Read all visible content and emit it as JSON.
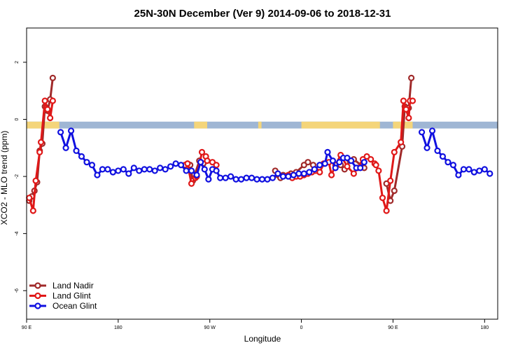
{
  "chart_data": {
    "type": "line",
    "title": "25N-30N December (Ver 9)   2014-09-06 to 2018-12-31",
    "xlabel": "Longitude",
    "ylabel": "XCO2 - MLO trend (ppm)",
    "xlim": [
      -90,
      270
    ],
    "ylim": [
      -7.0,
      3.2
    ],
    "x_ticks": [
      {
        "value": -90,
        "label": "90 E"
      },
      {
        "value": -20,
        "label": "180"
      },
      {
        "value": 50,
        "label": "90 W"
      },
      {
        "value": 120,
        "label": "0"
      },
      {
        "value": 190,
        "label": "90 E"
      },
      {
        "value": 260,
        "label": "180"
      }
    ],
    "y_ticks": [
      {
        "value": 2,
        "label": "2"
      },
      {
        "value": 0,
        "label": "0"
      },
      {
        "value": -2,
        "label": "-2"
      },
      {
        "value": -4,
        "label": "-4"
      },
      {
        "value": -6,
        "label": "-6"
      }
    ],
    "land_band": {
      "y_range": [
        -0.32,
        -0.08
      ],
      "ocean_color": "#9fb6d4",
      "land_color": "#f4d57a",
      "land_segments": [
        [
          -90,
          -65
        ],
        [
          38,
          48
        ],
        [
          87,
          89.5
        ],
        [
          120,
          180
        ],
        [
          190,
          205
        ]
      ]
    },
    "legend_position": "bottom-left",
    "series": [
      {
        "name": "Land Nadir",
        "color": "#a02a2a",
        "x": [
          -88,
          -86,
          -84,
          -82,
          -80,
          -78,
          -76,
          -74,
          -72,
          -70,
          33,
          35,
          37,
          42,
          45,
          100,
          102,
          104,
          106,
          112,
          116,
          122,
          125,
          129,
          150,
          153,
          157,
          160,
          168,
          185,
          188,
          191,
          197,
          199,
          202,
          204
        ],
        "y": [
          -2.85,
          -2.7,
          -2.5,
          -2.2,
          -1.1,
          -0.85,
          0.45,
          0.3,
          0.7,
          1.45,
          -1.55,
          -1.6,
          -2.15,
          -1.45,
          -1.55,
          -1.8,
          -1.95,
          -2.05,
          -1.95,
          -1.9,
          -1.85,
          -1.6,
          -1.5,
          -1.6,
          -1.6,
          -1.75,
          -1.45,
          -1.4,
          -1.7,
          -2.25,
          -2.85,
          -2.5,
          -0.95,
          0.45,
          0.4,
          1.45
        ]
      },
      {
        "name": "Land Glint",
        "color": "#e01818",
        "x": [
          -88,
          -85,
          -83,
          -80,
          -79,
          -76,
          -74,
          -72,
          -70,
          31,
          33,
          36,
          39,
          40,
          44,
          47,
          48,
          52,
          55,
          110,
          113,
          116,
          119,
          122,
          125,
          128,
          131,
          134,
          137,
          141,
          143,
          146,
          150,
          155,
          160,
          163,
          167,
          170,
          173,
          176,
          177,
          179,
          182,
          185,
          188,
          191,
          196,
          198,
          200,
          202,
          203,
          205
        ],
        "y": [
          -2.75,
          -3.2,
          -2.15,
          -1.15,
          -0.8,
          0.65,
          0.35,
          0.05,
          0.65,
          -1.6,
          -1.55,
          -2.25,
          -2.05,
          -2.0,
          -1.15,
          -1.3,
          -1.45,
          -1.5,
          -1.6,
          -1.95,
          -2.05,
          -2.0,
          -2.0,
          -1.95,
          -1.9,
          -1.85,
          -1.8,
          -1.85,
          -1.55,
          -1.5,
          -1.95,
          -1.6,
          -1.25,
          -1.65,
          -1.9,
          -1.7,
          -1.4,
          -1.3,
          -1.4,
          -1.55,
          -1.6,
          -1.8,
          -2.75,
          -3.2,
          -2.15,
          -1.15,
          -0.8,
          0.65,
          0.35,
          0.05,
          0.65,
          0.65
        ]
      },
      {
        "name": "Ocean Glint",
        "color": "#1010e0",
        "x": [
          -64,
          -60,
          -56,
          -52,
          -48,
          -44,
          -40,
          -36,
          -32,
          -28,
          -24,
          -20,
          -16,
          -12,
          -8,
          -4,
          0,
          4,
          8,
          12,
          16,
          20,
          24,
          28,
          32,
          36,
          40,
          43,
          46,
          49,
          52,
          55,
          58,
          62,
          66,
          70,
          74,
          78,
          82,
          86,
          90,
          94,
          98,
          102,
          106,
          110,
          114,
          118,
          122,
          126,
          130,
          134,
          138,
          140,
          144,
          146,
          149,
          152,
          155,
          158,
          162,
          165,
          168,
          212,
          216,
          220,
          224,
          228,
          232,
          236,
          240,
          244,
          248,
          252,
          256,
          260,
          264
        ],
        "y": [
          -0.45,
          -1.0,
          -0.4,
          -1.1,
          -1.3,
          -1.5,
          -1.6,
          -1.95,
          -1.75,
          -1.75,
          -1.85,
          -1.8,
          -1.75,
          -1.9,
          -1.7,
          -1.8,
          -1.75,
          -1.75,
          -1.8,
          -1.7,
          -1.75,
          -1.65,
          -1.55,
          -1.6,
          -1.8,
          -1.8,
          -1.95,
          -1.5,
          -1.75,
          -2.1,
          -1.75,
          -1.8,
          -2.05,
          -2.05,
          -2.0,
          -2.1,
          -2.1,
          -2.05,
          -2.05,
          -2.1,
          -2.1,
          -2.1,
          -2.05,
          -1.9,
          -2.0,
          -2.0,
          -1.95,
          -1.9,
          -1.9,
          -1.85,
          -1.75,
          -1.6,
          -1.55,
          -1.15,
          -1.45,
          -1.7,
          -1.5,
          -1.35,
          -1.35,
          -1.45,
          -1.7,
          -1.7,
          -1.5,
          -0.45,
          -1.0,
          -0.4,
          -1.1,
          -1.3,
          -1.5,
          -1.6,
          -1.95,
          -1.75,
          -1.75,
          -1.85,
          -1.8,
          -1.75,
          -1.9
        ]
      }
    ]
  }
}
